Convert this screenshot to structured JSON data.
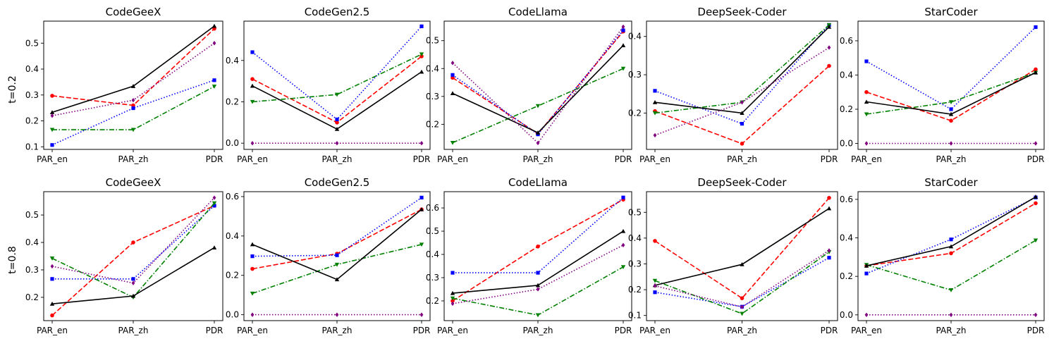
{
  "figure": {
    "row_labels": [
      "t=0.2",
      "t=0.8"
    ]
  },
  "chart_data": [
    {
      "type": "line",
      "title": "CodeGeeX",
      "row": 0,
      "col": 0,
      "categories": [
        "PAR_en",
        "PAR_zh",
        "PDR"
      ],
      "ylim": [
        0.09,
        0.585
      ],
      "yticks": [
        0.1,
        0.2,
        0.3,
        0.4,
        0.5
      ],
      "ytick_labels": [
        "0.1",
        "0.2",
        "0.3",
        "0.4",
        "0.5"
      ],
      "series": [
        {
          "color": "#ff0000",
          "linestyle": "dashed",
          "marker": "circle",
          "values": [
            0.297,
            0.26,
            0.556
          ]
        },
        {
          "color": "#0000ff",
          "linestyle": "dotted",
          "marker": "square",
          "values": [
            0.107,
            0.249,
            0.357
          ]
        },
        {
          "color": "#008000",
          "linestyle": "dashdot",
          "marker": "triangle-down",
          "values": [
            0.166,
            0.166,
            0.333
          ]
        },
        {
          "color": "#000000",
          "linestyle": "solid",
          "marker": "triangle-up",
          "values": [
            0.233,
            0.334,
            0.566
          ]
        },
        {
          "color": "#800080",
          "linestyle": "dotted",
          "marker": "diamond",
          "values": [
            0.22,
            0.28,
            0.5
          ]
        }
      ]
    },
    {
      "type": "line",
      "title": "CodeGen2.5",
      "row": 0,
      "col": 1,
      "categories": [
        "PAR_en",
        "PAR_zh",
        "PDR"
      ],
      "ylim": [
        -0.03,
        0.59
      ],
      "yticks": [
        0.0,
        0.2,
        0.4
      ],
      "ytick_labels": [
        "0.0",
        "0.2",
        "0.4"
      ],
      "series": [
        {
          "color": "#ff0000",
          "linestyle": "dashed",
          "marker": "circle",
          "values": [
            0.31,
            0.1,
            0.42
          ]
        },
        {
          "color": "#0000ff",
          "linestyle": "dotted",
          "marker": "square",
          "values": [
            0.44,
            0.115,
            0.565
          ]
        },
        {
          "color": "#008000",
          "linestyle": "dashdot",
          "marker": "triangle-down",
          "values": [
            0.2,
            0.235,
            0.43
          ]
        },
        {
          "color": "#000000",
          "linestyle": "solid",
          "marker": "triangle-up",
          "values": [
            0.277,
            0.068,
            0.345
          ]
        },
        {
          "color": "#800080",
          "linestyle": "dotted",
          "marker": "diamond",
          "values": [
            0.0,
            0.0,
            0.0
          ]
        }
      ]
    },
    {
      "type": "line",
      "title": "CodeLlama",
      "row": 0,
      "col": 2,
      "categories": [
        "PAR_en",
        "PAR_zh",
        "PDR"
      ],
      "ylim": [
        0.11,
        0.57
      ],
      "yticks": [
        0.2,
        0.3,
        0.4,
        0.5
      ],
      "ytick_labels": [
        "0.2",
        "0.3",
        "0.4",
        "0.5"
      ],
      "series": [
        {
          "color": "#ff0000",
          "linestyle": "dashed",
          "marker": "circle",
          "values": [
            0.367,
            0.166,
            0.533
          ]
        },
        {
          "color": "#0000ff",
          "linestyle": "dotted",
          "marker": "square",
          "values": [
            0.377,
            0.164,
            0.537
          ]
        },
        {
          "color": "#008000",
          "linestyle": "dashdot",
          "marker": "triangle-down",
          "values": [
            0.134,
            0.266,
            0.4
          ]
        },
        {
          "color": "#000000",
          "linestyle": "solid",
          "marker": "triangle-up",
          "values": [
            0.311,
            0.17,
            0.483
          ]
        },
        {
          "color": "#800080",
          "linestyle": "dotted",
          "marker": "diamond",
          "values": [
            0.42,
            0.133,
            0.55
          ]
        }
      ]
    },
    {
      "type": "line",
      "title": "DeepSeek-Coder",
      "row": 0,
      "col": 3,
      "categories": [
        "PAR_en",
        "PAR_zh",
        "PDR"
      ],
      "ylim": [
        0.105,
        0.44
      ],
      "yticks": [
        0.2,
        0.3,
        0.4
      ],
      "ytick_labels": [
        "0.2",
        "0.3",
        "0.4"
      ],
      "series": [
        {
          "color": "#ff0000",
          "linestyle": "dashed",
          "marker": "circle",
          "values": [
            0.205,
            0.12,
            0.323
          ]
        },
        {
          "color": "#0000ff",
          "linestyle": "dotted",
          "marker": "square",
          "values": [
            0.258,
            0.172,
            0.43
          ]
        },
        {
          "color": "#008000",
          "linestyle": "dashdot",
          "marker": "triangle-down",
          "values": [
            0.2,
            0.228,
            0.43
          ]
        },
        {
          "color": "#000000",
          "linestyle": "solid",
          "marker": "triangle-up",
          "values": [
            0.228,
            0.2,
            0.425
          ]
        },
        {
          "color": "#800080",
          "linestyle": "dotted",
          "marker": "diamond",
          "values": [
            0.142,
            0.228,
            0.371
          ]
        }
      ]
    },
    {
      "type": "line",
      "title": "StarCoder",
      "row": 0,
      "col": 4,
      "categories": [
        "PAR_en",
        "PAR_zh",
        "PDR"
      ],
      "ylim": [
        -0.035,
        0.715
      ],
      "yticks": [
        0.0,
        0.2,
        0.4,
        0.6
      ],
      "ytick_labels": [
        "0.0",
        "0.2",
        "0.4",
        "0.6"
      ],
      "series": [
        {
          "color": "#ff0000",
          "linestyle": "dashed",
          "marker": "circle",
          "values": [
            0.3,
            0.133,
            0.433
          ]
        },
        {
          "color": "#0000ff",
          "linestyle": "dotted",
          "marker": "square",
          "values": [
            0.48,
            0.2,
            0.68
          ]
        },
        {
          "color": "#008000",
          "linestyle": "dashdot",
          "marker": "triangle-down",
          "values": [
            0.171,
            0.242,
            0.414
          ]
        },
        {
          "color": "#000000",
          "linestyle": "solid",
          "marker": "triangle-up",
          "values": [
            0.243,
            0.171,
            0.414
          ]
        },
        {
          "color": "#800080",
          "linestyle": "dotted",
          "marker": "diamond",
          "values": [
            0.0,
            0.0,
            0.0
          ]
        }
      ]
    },
    {
      "type": "line",
      "title": "CodeGeeX",
      "row": 1,
      "col": 0,
      "categories": [
        "PAR_en",
        "PAR_zh",
        "PDR"
      ],
      "ylim": [
        0.115,
        0.585
      ],
      "yticks": [
        0.2,
        0.3,
        0.4,
        0.5
      ],
      "ytick_labels": [
        "0.2",
        "0.3",
        "0.4",
        "0.5"
      ],
      "series": [
        {
          "color": "#ff0000",
          "linestyle": "dashed",
          "marker": "circle",
          "values": [
            0.134,
            0.4,
            0.534
          ]
        },
        {
          "color": "#0000ff",
          "linestyle": "dotted",
          "marker": "square",
          "values": [
            0.267,
            0.267,
            0.534
          ]
        },
        {
          "color": "#008000",
          "linestyle": "dashdot",
          "marker": "triangle-down",
          "values": [
            0.342,
            0.2,
            0.543
          ]
        },
        {
          "color": "#000000",
          "linestyle": "solid",
          "marker": "triangle-up",
          "values": [
            0.176,
            0.205,
            0.381
          ]
        },
        {
          "color": "#800080",
          "linestyle": "dotted",
          "marker": "diamond",
          "values": [
            0.313,
            0.252,
            0.563
          ]
        }
      ]
    },
    {
      "type": "line",
      "title": "CodeGen2.5",
      "row": 1,
      "col": 1,
      "categories": [
        "PAR_en",
        "PAR_zh",
        "PDR"
      ],
      "ylim": [
        -0.03,
        0.625
      ],
      "yticks": [
        0.0,
        0.2,
        0.4,
        0.6
      ],
      "ytick_labels": [
        "0.0",
        "0.2",
        "0.4",
        "0.6"
      ],
      "series": [
        {
          "color": "#ff0000",
          "linestyle": "dashed",
          "marker": "circle",
          "values": [
            0.233,
            0.31,
            0.535
          ]
        },
        {
          "color": "#0000ff",
          "linestyle": "dotted",
          "marker": "square",
          "values": [
            0.297,
            0.302,
            0.595
          ]
        },
        {
          "color": "#008000",
          "linestyle": "dashdot",
          "marker": "triangle-down",
          "values": [
            0.108,
            0.255,
            0.357
          ]
        },
        {
          "color": "#000000",
          "linestyle": "solid",
          "marker": "triangle-up",
          "values": [
            0.357,
            0.179,
            0.535
          ]
        },
        {
          "color": "#800080",
          "linestyle": "dotted",
          "marker": "diamond",
          "values": [
            0.0,
            0.0,
            0.0
          ]
        }
      ]
    },
    {
      "type": "line",
      "title": "CodeLlama",
      "row": 1,
      "col": 2,
      "categories": [
        "PAR_en",
        "PAR_zh",
        "PDR"
      ],
      "ylim": [
        0.115,
        0.67
      ],
      "yticks": [
        0.2,
        0.3,
        0.4,
        0.5,
        0.6
      ],
      "ytick_labels": [
        "0.2",
        "0.3",
        "0.4",
        "0.5",
        "0.6"
      ],
      "series": [
        {
          "color": "#ff0000",
          "linestyle": "dashed",
          "marker": "circle",
          "values": [
            0.2,
            0.434,
            0.636
          ]
        },
        {
          "color": "#0000ff",
          "linestyle": "dotted",
          "marker": "square",
          "values": [
            0.321,
            0.321,
            0.645
          ]
        },
        {
          "color": "#008000",
          "linestyle": "dashdot",
          "marker": "triangle-down",
          "values": [
            0.211,
            0.139,
            0.346
          ]
        },
        {
          "color": "#000000",
          "linestyle": "solid",
          "marker": "triangle-up",
          "values": [
            0.233,
            0.267,
            0.5
          ]
        },
        {
          "color": "#800080",
          "linestyle": "dotted",
          "marker": "diamond",
          "values": [
            0.188,
            0.25,
            0.44
          ]
        }
      ]
    },
    {
      "type": "line",
      "title": "DeepSeek-Coder",
      "row": 1,
      "col": 3,
      "categories": [
        "PAR_en",
        "PAR_zh",
        "PDR"
      ],
      "ylim": [
        0.08,
        0.58
      ],
      "yticks": [
        0.1,
        0.2,
        0.3,
        0.4,
        0.5
      ],
      "ytick_labels": [
        "0.1",
        "0.2",
        "0.3",
        "0.4",
        "0.5"
      ],
      "series": [
        {
          "color": "#ff0000",
          "linestyle": "dashed",
          "marker": "circle",
          "values": [
            0.389,
            0.167,
            0.556
          ]
        },
        {
          "color": "#0000ff",
          "linestyle": "dotted",
          "marker": "square",
          "values": [
            0.19,
            0.134,
            0.324
          ]
        },
        {
          "color": "#008000",
          "linestyle": "dashdot",
          "marker": "triangle-down",
          "values": [
            0.235,
            0.107,
            0.346
          ]
        },
        {
          "color": "#000000",
          "linestyle": "solid",
          "marker": "triangle-up",
          "values": [
            0.217,
            0.298,
            0.515
          ]
        },
        {
          "color": "#800080",
          "linestyle": "dotted",
          "marker": "diamond",
          "values": [
            0.215,
            0.133,
            0.352
          ]
        }
      ]
    },
    {
      "type": "line",
      "title": "StarCoder",
      "row": 1,
      "col": 4,
      "categories": [
        "PAR_en",
        "PAR_zh",
        "PDR"
      ],
      "ylim": [
        -0.03,
        0.64
      ],
      "yticks": [
        0.0,
        0.2,
        0.4,
        0.6
      ],
      "ytick_labels": [
        "0.0",
        "0.2",
        "0.4",
        "0.6"
      ],
      "series": [
        {
          "color": "#ff0000",
          "linestyle": "dashed",
          "marker": "circle",
          "values": [
            0.255,
            0.32,
            0.58
          ]
        },
        {
          "color": "#0000ff",
          "linestyle": "dotted",
          "marker": "square",
          "values": [
            0.215,
            0.392,
            0.61
          ]
        },
        {
          "color": "#008000",
          "linestyle": "dashdot",
          "marker": "triangle-down",
          "values": [
            0.26,
            0.129,
            0.387
          ]
        },
        {
          "color": "#000000",
          "linestyle": "solid",
          "marker": "triangle-up",
          "values": [
            0.255,
            0.355,
            0.613
          ]
        },
        {
          "color": "#800080",
          "linestyle": "dotted",
          "marker": "diamond",
          "values": [
            0.0,
            0.0,
            0.0
          ]
        }
      ]
    }
  ]
}
